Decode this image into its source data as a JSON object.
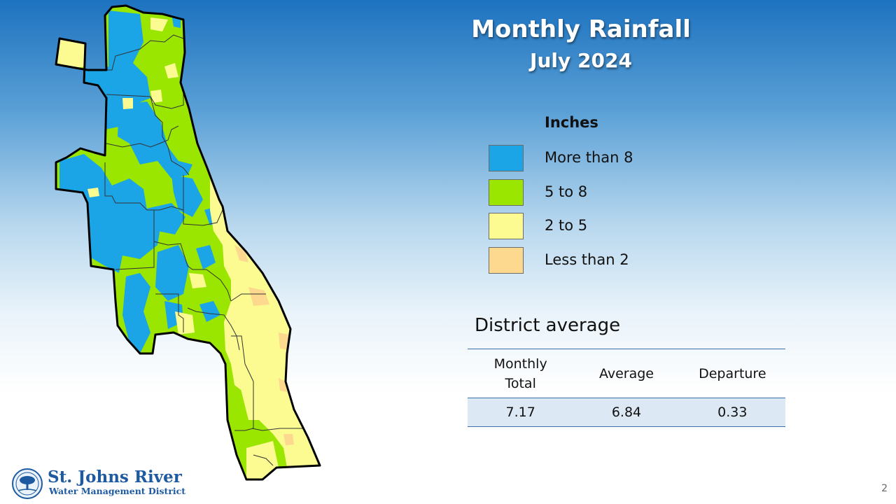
{
  "header": {
    "title": "Monthly Rainfall",
    "subtitle": "July 2024"
  },
  "legend": {
    "title": "Inches",
    "items": [
      {
        "label": "More than 8",
        "color": "#1ba4e6"
      },
      {
        "label": "5 to 8",
        "color": "#9ae600"
      },
      {
        "label": "2 to 5",
        "color": "#fbfb92"
      },
      {
        "label": "Less than 2",
        "color": "#fcd98e"
      }
    ]
  },
  "map": {
    "region": "St. Johns River Water Management District",
    "outline_color": "#000000",
    "county_line_color": "#333333"
  },
  "district_average": {
    "title": "District average",
    "columns": [
      "Monthly Total",
      "Average",
      "Departure"
    ],
    "values": [
      "7.17",
      "6.84",
      "0.33"
    ]
  },
  "logo": {
    "line1": "St. Johns River",
    "line2": "Water Management District"
  },
  "page_number": "2"
}
